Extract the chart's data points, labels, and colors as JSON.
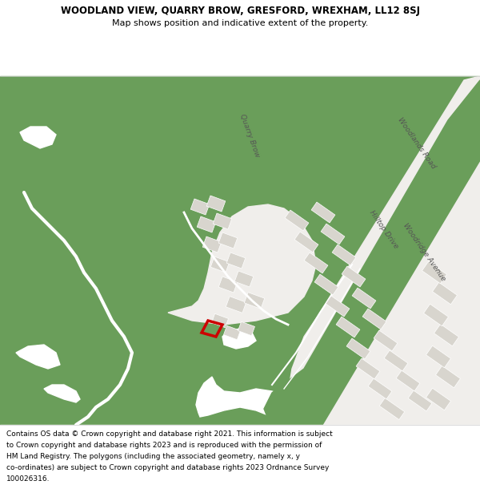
{
  "title_line1": "WOODLAND VIEW, QUARRY BROW, GRESFORD, WREXHAM, LL12 8SJ",
  "title_line2": "Map shows position and indicative extent of the property.",
  "footer_lines": [
    "Contains OS data © Crown copyright and database right 2021. This information is subject",
    "to Crown copyright and database rights 2023 and is reproduced with the permission of",
    "HM Land Registry. The polygons (including the associated geometry, namely x, y",
    "co-ordinates) are subject to Crown copyright and database rights 2023 Ordnance Survey",
    "100026316."
  ],
  "bg_color": "#6a9e5a",
  "road_color": "#f0eeeb",
  "building_color": "#d8d5ce",
  "red_outline": "#cc0000",
  "white_patch": "#ffffff",
  "header_bg": "#ffffff",
  "footer_bg": "#ffffff",
  "fig_width": 6.0,
  "fig_height": 6.25
}
